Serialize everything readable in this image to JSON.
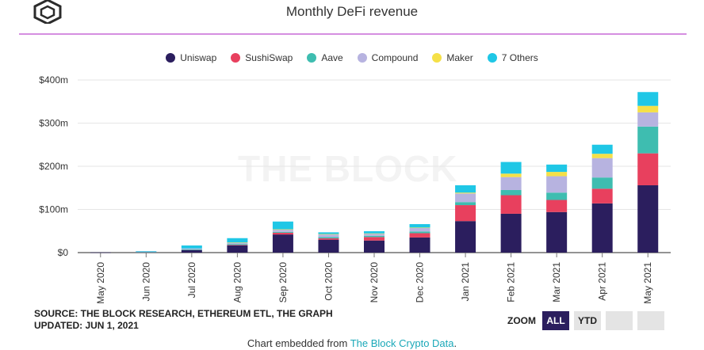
{
  "header": {
    "title": "Monthly DeFi revenue"
  },
  "colors": {
    "uniswap": "#2b1e5e",
    "sushiswap": "#e8405e",
    "aave": "#3ebdb0",
    "compound": "#b7b3e0",
    "maker": "#f5e047",
    "others": "#1fc7e6"
  },
  "watermark": "THE BLOCK",
  "chart_data": {
    "type": "bar",
    "stacked": true,
    "categories": [
      "May 2020",
      "Jun 2020",
      "Jul 2020",
      "Aug 2020",
      "Sep 2020",
      "Oct 2020",
      "Nov 2020",
      "Dec 2020",
      "Jan 2021",
      "Feb 2021",
      "Mar 2021",
      "Apr 2021",
      "May 2021"
    ],
    "series": [
      {
        "name": "Uniswap",
        "values": [
          0.5,
          1,
          6,
          17,
          42,
          30,
          28,
          35,
          73,
          90,
          94,
          114,
          156
        ]
      },
      {
        "name": "SushiSwap",
        "values": [
          0,
          0,
          0,
          1,
          4,
          3,
          8,
          10,
          37,
          43,
          28,
          34,
          74
        ]
      },
      {
        "name": "Aave",
        "values": [
          0,
          0.5,
          1.5,
          2,
          2,
          3,
          3,
          4,
          7,
          12,
          17,
          26,
          62
        ]
      },
      {
        "name": "Compound",
        "values": [
          0,
          1,
          2,
          3,
          5,
          6,
          5,
          8,
          20,
          30,
          38,
          45,
          33
        ]
      },
      {
        "name": "Maker",
        "values": [
          0,
          0,
          0,
          0.5,
          1,
          1,
          0.5,
          1,
          2,
          8,
          10,
          10,
          15
        ]
      },
      {
        "name": "7 Others",
        "values": [
          0,
          1,
          7,
          10,
          18,
          4,
          5,
          8,
          17,
          27,
          17,
          21,
          32
        ]
      }
    ],
    "ylim": [
      0,
      400
    ],
    "yticks": [
      "$0",
      "$100m",
      "$200m",
      "$300m",
      "$400m"
    ],
    "grid": true,
    "legend_position": "top"
  },
  "source": {
    "line1": "SOURCE: THE BLOCK RESEARCH, ETHEREUM ETL, THE GRAPH",
    "line2": "UPDATED: JUN 1, 2021"
  },
  "zoom": {
    "label": "ZOOM",
    "all": "ALL",
    "ytd": "YTD"
  },
  "footer": {
    "prefix": "Chart embedded from ",
    "link": "The Block Crypto Data",
    "suffix": "."
  }
}
